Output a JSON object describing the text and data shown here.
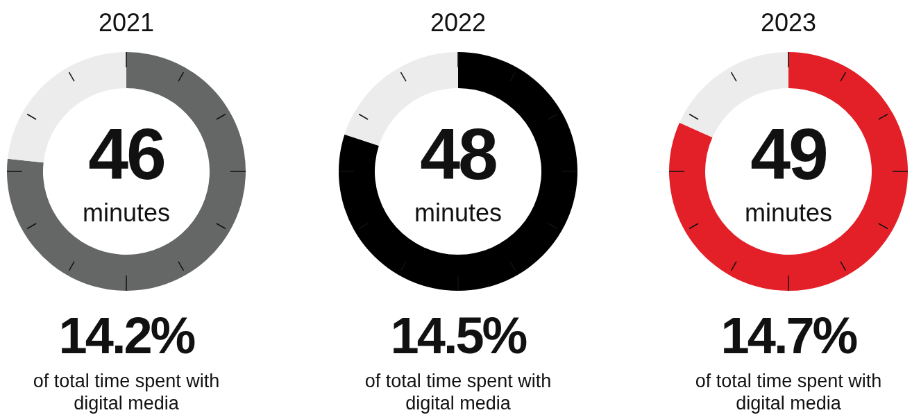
{
  "chart_data": [
    {
      "type": "donut",
      "title": "2021",
      "categories": [
        null,
        null
      ],
      "values": [
        76.7,
        23.3
      ],
      "colors": [
        "#656766",
        "#ececec"
      ],
      "annotations": [
        "46",
        "minutes",
        "14.2%",
        "of total time spent with digital media"
      ]
    },
    {
      "type": "donut",
      "title": "2022",
      "categories": [
        null,
        null
      ],
      "values": [
        80,
        20
      ],
      "colors": [
        "#000000",
        "#ececec"
      ],
      "annotations": [
        "48",
        "minutes",
        "14.5%",
        "of total time spent with digital media"
      ]
    },
    {
      "type": "donut",
      "title": "2023",
      "categories": [
        null,
        null
      ],
      "values": [
        81.7,
        18.3
      ],
      "colors": [
        "#e32028",
        "#ececec"
      ],
      "annotations": [
        "49",
        "minutes",
        "14.7%",
        "of total time spent with digital media"
      ]
    }
  ]
}
